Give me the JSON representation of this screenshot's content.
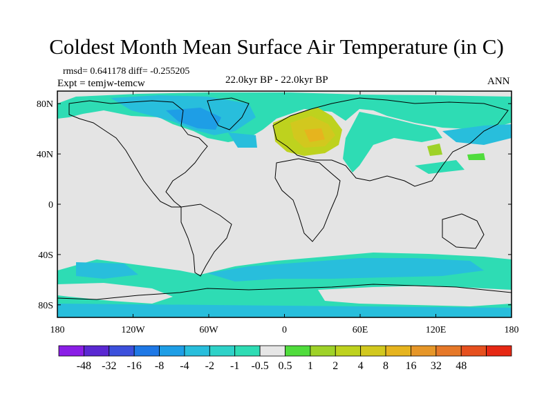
{
  "title": "Coldest Month Mean Surface Air Temperature (in C)",
  "stats": "rmsd= 0.641178 diff= -0.255205",
  "experiment": "Expt = temjw-temcw",
  "period": "22.0kyr BP - 22.0kyr BP",
  "season": "ANN",
  "map": {
    "lon_range": [
      -180,
      180
    ],
    "lat_range": [
      -90,
      90
    ],
    "background_color": "#e4e4e4",
    "lat_ticks": [
      {
        "value": 80,
        "label": "80N"
      },
      {
        "value": 40,
        "label": "40N"
      },
      {
        "value": 0,
        "label": "0"
      },
      {
        "value": -40,
        "label": "40S"
      },
      {
        "value": -80,
        "label": "80S"
      }
    ],
    "lon_ticks": [
      {
        "value": -180,
        "label": "180"
      },
      {
        "value": -120,
        "label": "120W"
      },
      {
        "value": -60,
        "label": "60W"
      },
      {
        "value": 0,
        "label": "0"
      },
      {
        "value": 60,
        "label": "60E"
      },
      {
        "value": 120,
        "label": "120E"
      },
      {
        "value": 180,
        "label": "180"
      }
    ]
  },
  "colorbar": {
    "colors": [
      "#8a1ee6",
      "#5a28d2",
      "#3c50dc",
      "#1e78e6",
      "#1e9ee6",
      "#28bedc",
      "#2ed2c8",
      "#2edcb4",
      "#e6e6e6",
      "#50dc3c",
      "#9ed228",
      "#bed21e",
      "#d2c81e",
      "#e6b41e",
      "#e69628",
      "#e67828",
      "#e6501e",
      "#e62814"
    ],
    "labels": [
      "-48",
      "-32",
      "-16",
      "-8",
      "-4",
      "-2",
      "-1",
      "-0.5",
      "0.5",
      "1",
      "2",
      "4",
      "8",
      "16",
      "32",
      "48"
    ]
  }
}
